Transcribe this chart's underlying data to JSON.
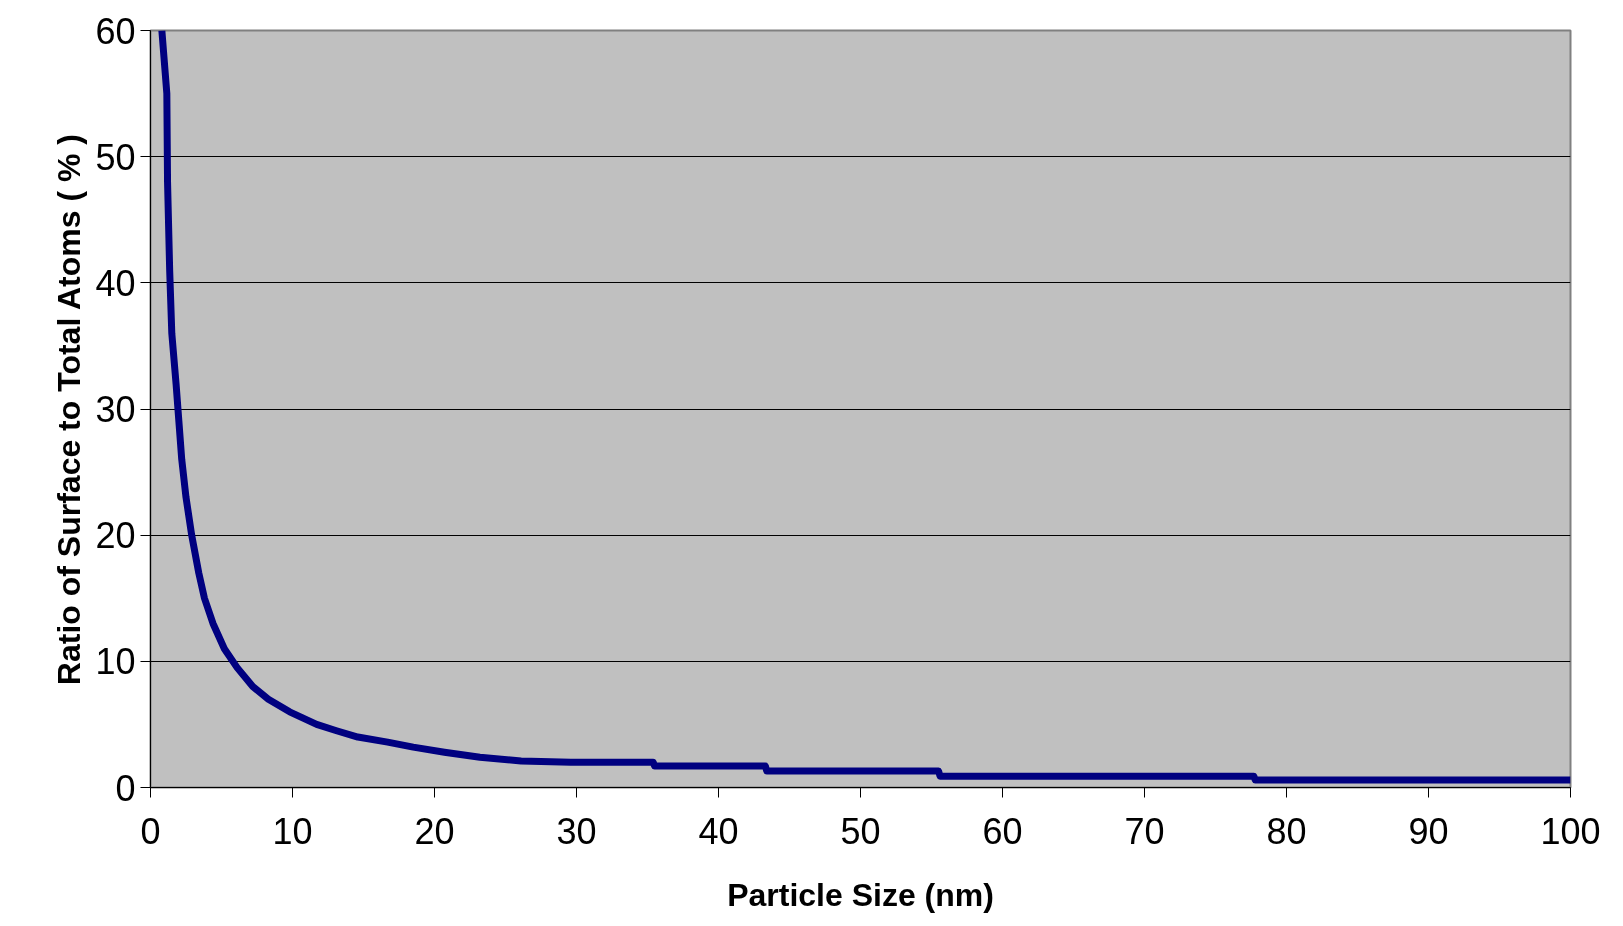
{
  "chart_data": {
    "type": "line",
    "xlabel": "Particle Size (nm)",
    "ylabel": "Ratio of Surface to Total Atoms ( % )",
    "x": [
      0.8,
      1.15,
      1.2,
      1.35,
      1.5,
      1.8,
      2.0,
      2.2,
      2.5,
      2.9,
      3.4,
      3.8,
      4.4,
      5.2,
      6.1,
      7.2,
      8.3,
      9.8,
      11.7,
      13.1,
      14.6,
      16.7,
      18.5,
      20.7,
      23.2,
      26.1,
      29.6,
      35.4,
      35.5,
      43.3,
      43.4,
      55.5,
      55.6,
      77.7,
      77.8,
      100
    ],
    "series": [
      {
        "color": "#000080",
        "values": [
          60,
          55,
          48,
          41,
          36,
          32,
          29,
          26,
          23,
          20,
          17,
          15,
          13,
          11,
          9.5,
          8,
          7,
          6,
          5,
          4.5,
          4,
          3.6,
          3.2,
          2.8,
          2.4,
          2.1,
          2.0,
          2.0,
          1.7,
          1.7,
          1.3,
          1.3,
          0.9,
          0.9,
          0.6,
          0.6
        ]
      }
    ],
    "xlim": [
      0,
      100
    ],
    "xticks": [
      0,
      10,
      20,
      30,
      40,
      50,
      60,
      70,
      80,
      90,
      100
    ],
    "ylim": [
      0,
      60
    ],
    "yticks": [
      0,
      10,
      20,
      30,
      40,
      50,
      60
    ],
    "grid": "y",
    "marker": "none",
    "line_style": "solid"
  }
}
